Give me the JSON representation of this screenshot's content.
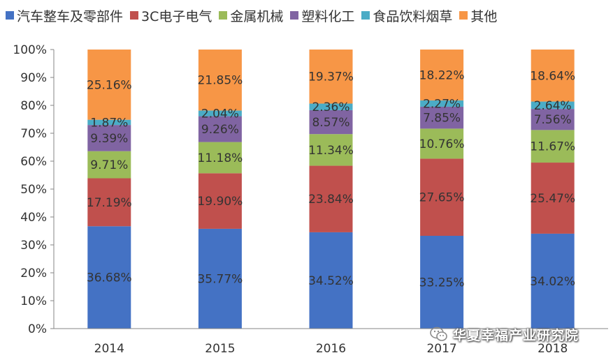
{
  "chart_data": {
    "type": "bar",
    "stacked": true,
    "percent": true,
    "categories": [
      "2014",
      "2015",
      "2016",
      "2017",
      "2018"
    ],
    "y_ticks": [
      "0%",
      "10%",
      "20%",
      "30%",
      "40%",
      "50%",
      "60%",
      "70%",
      "80%",
      "90%",
      "100%"
    ],
    "ylim": [
      0,
      100
    ],
    "legend_position": "top",
    "series": [
      {
        "name": "汽车整车及零部件",
        "color": "#4472C4",
        "values": [
          36.68,
          35.77,
          34.52,
          33.25,
          34.02
        ],
        "labels": [
          "36.68%",
          "35.77%",
          "34.52%",
          "33.25%",
          "34.02%"
        ]
      },
      {
        "name": "3C电子电气",
        "color": "#C0504D",
        "values": [
          17.19,
          19.9,
          23.84,
          27.65,
          25.47
        ],
        "labels": [
          "17.19%",
          "19.90%",
          "23.84%",
          "27.65%",
          "25.47%"
        ]
      },
      {
        "name": "金属机械",
        "color": "#9BBB59",
        "values": [
          9.71,
          11.18,
          11.34,
          10.76,
          11.67
        ],
        "labels": [
          "9.71%",
          "11.18%",
          "11.34%",
          "10.76%",
          "11.67%"
        ]
      },
      {
        "name": "塑料化工",
        "color": "#8064A2",
        "values": [
          9.39,
          9.26,
          8.57,
          7.85,
          7.56
        ],
        "labels": [
          "9.39%",
          "9.26%",
          "8.57%",
          "7.85%",
          "7.56%"
        ]
      },
      {
        "name": "食品饮料烟草",
        "color": "#4BACC6",
        "values": [
          1.87,
          2.04,
          2.36,
          2.27,
          2.64
        ],
        "labels": [
          "1.87%",
          "2.04%",
          "2.36%",
          "2.27%",
          "2.64%"
        ]
      },
      {
        "name": "其他",
        "color": "#F79646",
        "values": [
          25.16,
          21.85,
          19.37,
          18.22,
          18.64
        ],
        "labels": [
          "25.16%",
          "21.85%",
          "19.37%",
          "18.22%",
          "18.64%"
        ]
      }
    ]
  },
  "watermark": {
    "text": "华夏幸福产业研究院",
    "icon": "wechat-icon"
  }
}
